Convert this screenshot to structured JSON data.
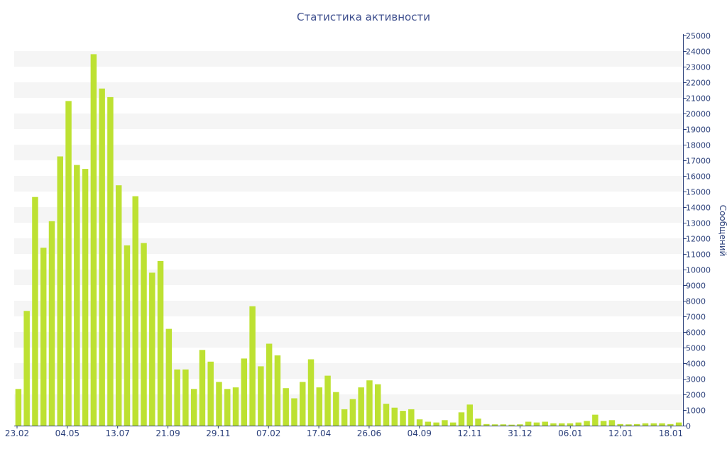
{
  "chart_data": {
    "type": "bar",
    "title": "Статистика активности",
    "xlabel": "",
    "ylabel": "Сообщений",
    "ylim": [
      0,
      25000
    ],
    "y_ticks": [
      0,
      1000,
      2000,
      3000,
      4000,
      5000,
      6000,
      7000,
      8000,
      9000,
      10000,
      11000,
      12000,
      13000,
      14000,
      15000,
      16000,
      17000,
      18000,
      19000,
      20000,
      21000,
      22000,
      23000,
      24000,
      25000
    ],
    "x_tick_labels": [
      "23.02",
      "04.05",
      "13.07",
      "21.09",
      "29.11",
      "07.02",
      "17.04",
      "26.06",
      "04.09",
      "12.11",
      "31.12",
      "06.01",
      "12.01",
      "18.01"
    ],
    "y_axis_position": "right",
    "grid": "horizontal alternating bands",
    "bar_color": "#bde132",
    "values": [
      2350,
      7350,
      14650,
      11400,
      13100,
      17250,
      20800,
      16700,
      16450,
      23800,
      21600,
      21050,
      15400,
      11550,
      14700,
      11700,
      9800,
      10550,
      6200,
      3600,
      3600,
      2350,
      4850,
      4100,
      2800,
      2350,
      2450,
      4300,
      7650,
      3800,
      5250,
      4500,
      2400,
      1750,
      2800,
      4250,
      2450,
      3200,
      2150,
      1050,
      1700,
      2450,
      2900,
      2650,
      1400,
      1150,
      950,
      1050,
      400,
      250,
      200,
      350,
      200,
      850,
      1350,
      450,
      100,
      80,
      80,
      60,
      80,
      250,
      200,
      250,
      150,
      150,
      150,
      200,
      300,
      700,
      300,
      350,
      100,
      80,
      100,
      150,
      150,
      150,
      100,
      200
    ]
  }
}
